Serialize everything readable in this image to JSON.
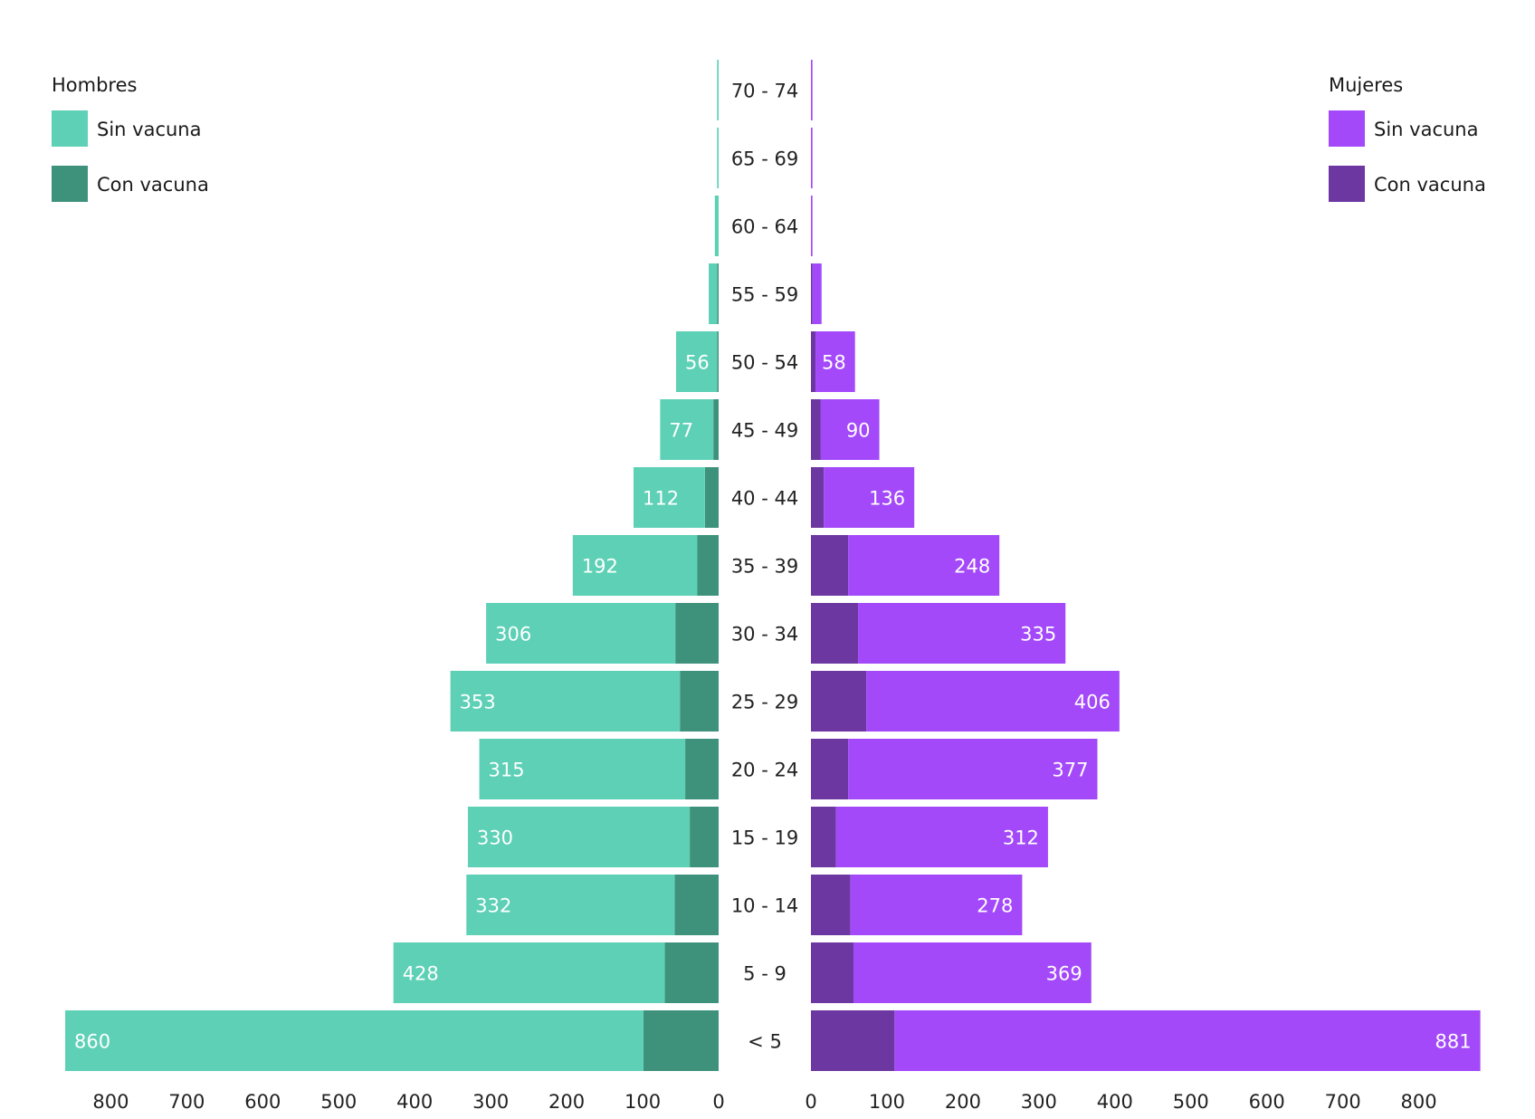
{
  "chart_data": {
    "type": "bar",
    "subtype": "population-pyramid",
    "categories": [
      "70 - 74",
      "65 - 69",
      "60 - 64",
      "55 - 59",
      "50 - 54",
      "45 - 49",
      "40 - 44",
      "35 - 39",
      "30 - 34",
      "25 - 29",
      "20 - 24",
      "15 - 19",
      "10 - 14",
      "5 - 9",
      "< 5"
    ],
    "left": {
      "name": "Hombres",
      "colors": {
        "sin": "#5dd0b6",
        "con": "#3e927c"
      },
      "series": [
        {
          "name": "Con vacuna",
          "values": [
            0,
            0,
            0,
            2,
            2,
            7,
            18,
            28,
            57,
            51,
            44,
            38,
            58,
            71,
            99
          ]
        },
        {
          "name": "Sin vacuna",
          "values": [
            2,
            2,
            5,
            11,
            54,
            70,
            94,
            164,
            249,
            302,
            271,
            292,
            274,
            357,
            761
          ]
        }
      ],
      "totals": [
        2,
        2,
        5,
        13,
        56,
        77,
        112,
        192,
        306,
        353,
        315,
        330,
        332,
        428,
        860
      ],
      "labels": [
        "",
        "",
        "",
        "",
        "56",
        "77",
        "112",
        "192",
        "306",
        "353",
        "315",
        "330",
        "332",
        "428",
        "860"
      ]
    },
    "right": {
      "name": "Mujeres",
      "colors": {
        "sin": "#a349fa",
        "con": "#6d37a1"
      },
      "series": [
        {
          "name": "Con vacuna",
          "values": [
            0,
            0,
            0,
            2,
            6,
            13,
            17,
            49,
            62,
            73,
            49,
            33,
            52,
            56,
            110
          ]
        },
        {
          "name": "Sin vacuna",
          "values": [
            2,
            2,
            2,
            12,
            52,
            77,
            119,
            199,
            273,
            333,
            328,
            279,
            226,
            313,
            771
          ]
        }
      ],
      "totals": [
        2,
        2,
        2,
        14,
        58,
        90,
        136,
        248,
        335,
        406,
        377,
        312,
        278,
        369,
        881
      ],
      "labels": [
        "",
        "",
        "",
        "",
        "58",
        "90",
        "136",
        "248",
        "335",
        "406",
        "377",
        "312",
        "278",
        "369",
        "881"
      ]
    },
    "axis_ticks": [
      0,
      100,
      200,
      300,
      400,
      500,
      600,
      700,
      800
    ],
    "xlim": [
      0,
      881
    ],
    "legend": {
      "left": {
        "title": "Hombres",
        "sin_label": "Sin vacuna",
        "con_label": "Con vacuna",
        "position": "top-left"
      },
      "right": {
        "title": "Mujeres",
        "sin_label": "Sin vacuna",
        "con_label": "Con vacuna",
        "position": "top-right"
      }
    }
  }
}
